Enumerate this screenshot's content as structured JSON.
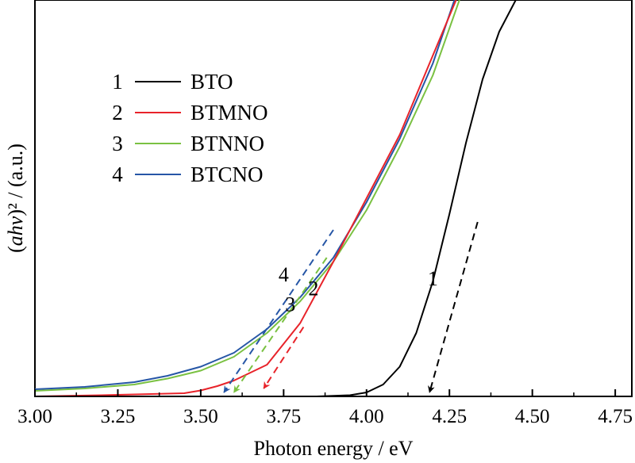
{
  "chart_data": {
    "type": "line",
    "xlabel": "Photon energy / eV",
    "ylabel_parts": {
      "prefix": "(",
      "italic": "ahv",
      "suffix": ")² / (a.u.)"
    },
    "xlim": [
      3.0,
      4.8
    ],
    "ylim": [
      0,
      100
    ],
    "x_ticks": [
      "3.00",
      "3.25",
      "3.50",
      "3.75",
      "4.00",
      "4.25",
      "4.50",
      "4.75"
    ],
    "y_ticks_labeled": false,
    "grid": false,
    "legend_position": "upper-left",
    "series": [
      {
        "id": "1",
        "name": "BTO",
        "number": "1",
        "color": "#000000",
        "x": [
          3.0,
          3.85,
          3.95,
          4.0,
          4.05,
          4.1,
          4.15,
          4.2,
          4.25,
          4.3,
          4.35,
          4.4,
          4.45,
          4.47
        ],
        "y": [
          0,
          0,
          0.3,
          1.0,
          3.0,
          7.5,
          16,
          29,
          46,
          64,
          80,
          92,
          100,
          100
        ],
        "tangent": {
          "x": [
            4.335,
            4.19
          ],
          "y": [
            44,
            1
          ],
          "color": "#000000"
        },
        "curve_label": {
          "x": 4.2,
          "y": 28
        }
      },
      {
        "id": "2",
        "name": "BTMNO",
        "number": "2",
        "color": "#e8232a",
        "x": [
          3.0,
          3.2,
          3.35,
          3.45,
          3.5,
          3.55,
          3.6,
          3.7,
          3.8,
          3.9,
          4.0,
          4.1,
          4.2,
          4.27
        ],
        "y": [
          0,
          0.3,
          0.6,
          0.8,
          1.5,
          2.6,
          4.0,
          8.0,
          18.5,
          34,
          50,
          66,
          86,
          100
        ],
        "tangent": {
          "x": [
            3.81,
            3.69
          ],
          "y": [
            17.5,
            2
          ],
          "color": "#e8232a"
        },
        "curve_label": {
          "x": 3.84,
          "y": 25.5
        }
      },
      {
        "id": "3",
        "name": "BTNNO",
        "number": "3",
        "color": "#7ac142",
        "x": [
          3.0,
          3.15,
          3.3,
          3.4,
          3.5,
          3.6,
          3.7,
          3.8,
          3.9,
          4.0,
          4.1,
          4.2,
          4.28
        ],
        "y": [
          1.4,
          2.0,
          3.0,
          4.5,
          6.5,
          10,
          16,
          24,
          34,
          47,
          63,
          81,
          100
        ],
        "tangent": {
          "x": [
            3.88,
            3.6
          ],
          "y": [
            35,
            1
          ],
          "color": "#7ac142"
        },
        "curve_label": {
          "x": 3.77,
          "y": 21.5
        }
      },
      {
        "id": "4",
        "name": "BTCNO",
        "number": "4",
        "color": "#2656a6",
        "x": [
          3.0,
          3.15,
          3.3,
          3.4,
          3.5,
          3.6,
          3.7,
          3.8,
          3.9,
          4.0,
          4.1,
          4.2,
          4.265
        ],
        "y": [
          1.8,
          2.4,
          3.6,
          5.2,
          7.5,
          11,
          17,
          25,
          35,
          49,
          65,
          84,
          100
        ],
        "tangent": {
          "x": [
            3.9,
            3.57
          ],
          "y": [
            42,
            1
          ],
          "color": "#2656a6"
        },
        "curve_label": {
          "x": 3.75,
          "y": 29
        }
      }
    ]
  }
}
